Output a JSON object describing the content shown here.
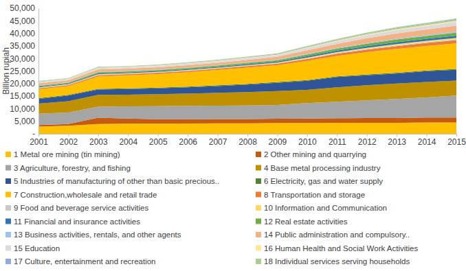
{
  "chart_data": {
    "type": "area",
    "stacked": true,
    "grid": false,
    "legend": "bottom",
    "y_label": "Billion rupiah",
    "x": [
      2001,
      2002,
      2003,
      2004,
      2005,
      2006,
      2007,
      2008,
      2009,
      2010,
      2011,
      2012,
      2013,
      2014,
      2015
    ],
    "xlim": [
      2001,
      2015
    ],
    "xticks": [
      2001,
      2002,
      2003,
      2004,
      2005,
      2006,
      2007,
      2008,
      2009,
      2010,
      2011,
      2012,
      2013,
      2014,
      2015
    ],
    "ylim": [
      0,
      50000
    ],
    "yticks": [
      {
        "value": 0,
        "label": "-"
      },
      {
        "value": 5000,
        "label": "5,000"
      },
      {
        "value": 10000,
        "label": "10,000"
      },
      {
        "value": 15000,
        "label": "15,000"
      },
      {
        "value": 20000,
        "label": "20,000"
      },
      {
        "value": 25000,
        "label": "25,000"
      },
      {
        "value": 30000,
        "label": "30,000"
      },
      {
        "value": 35000,
        "label": "35,000"
      },
      {
        "value": 40000,
        "label": "40,000"
      },
      {
        "value": 45000,
        "label": "45,000"
      },
      {
        "value": 50000,
        "label": "50,000"
      }
    ],
    "series": [
      {
        "name": "1 Metal ore mining (tin mining)",
        "color": "#FFC000",
        "values": [
          2900,
          3200,
          3900,
          4000,
          4000,
          4100,
          4200,
          4200,
          4300,
          4300,
          4400,
          4400,
          4400,
          4500,
          4500
        ]
      },
      {
        "name": "2 Other mining and quarrying",
        "color": "#C55A11",
        "values": [
          600,
          700,
          2500,
          2100,
          1800,
          1700,
          1700,
          1700,
          1700,
          1800,
          1800,
          1900,
          1900,
          2000,
          2000
        ]
      },
      {
        "name": "3 Agriculture, forestry, and fishing",
        "color": "#A5A5A5",
        "values": [
          4500,
          4600,
          4400,
          4800,
          5200,
          5300,
          5300,
          5400,
          5500,
          6100,
          6600,
          7000,
          7600,
          8000,
          8700
        ]
      },
      {
        "name": "4 Base metal processing industry",
        "color": "#BF9000",
        "values": [
          4000,
          4500,
          4700,
          4700,
          4800,
          4900,
          5100,
          5300,
          5500,
          5300,
          5700,
          6000,
          6100,
          6100,
          6000
        ]
      },
      {
        "name": "5 Industries of manufacturing of other than basic precious..",
        "color": "#2F5597",
        "values": [
          1900,
          2200,
          2100,
          2200,
          2300,
          2500,
          2700,
          3000,
          3300,
          3600,
          4100,
          4000,
          4000,
          4300,
          4300
        ]
      },
      {
        "name": "6 Electricity, gas and water supply",
        "color": "#548235",
        "values": [
          300,
          300,
          300,
          300,
          300,
          300,
          300,
          300,
          300,
          300,
          300,
          300,
          300,
          300,
          300
        ]
      },
      {
        "name": "7 Construction,wholesale and retail trade",
        "color": "#FFC000",
        "values": [
          3500,
          3500,
          4900,
          5200,
          5400,
          5700,
          6100,
          6500,
          6700,
          7600,
          8100,
          8900,
          9500,
          9800,
          10200
        ]
      },
      {
        "name": "8 Transportation and storage",
        "color": "#ED7D31",
        "values": [
          430,
          420,
          510,
          480,
          490,
          520,
          530,
          560,
          610,
          780,
          880,
          1010,
          1130,
          1200,
          1300
        ]
      },
      {
        "name": "9 Food and beverage service activities",
        "color": "#C9C9C9",
        "values": [
          130,
          130,
          160,
          150,
          150,
          160,
          160,
          170,
          190,
          240,
          270,
          310,
          350,
          370,
          400
        ]
      },
      {
        "name": "10 Information and Communication",
        "color": "#FFD966",
        "values": [
          170,
          160,
          200,
          190,
          190,
          200,
          210,
          220,
          240,
          300,
          340,
          390,
          440,
          460,
          500
        ]
      },
      {
        "name": "11 Financial and insurance activities",
        "color": "#2E75B6",
        "values": [
          300,
          290,
          350,
          330,
          340,
          360,
          370,
          390,
          420,
          540,
          610,
          700,
          780,
          830,
          900
        ]
      },
      {
        "name": "12 Real estate activities",
        "color": "#70AD47",
        "values": [
          400,
          380,
          470,
          440,
          460,
          480,
          490,
          520,
          560,
          720,
          820,
          940,
          1040,
          1100,
          1200
        ]
      },
      {
        "name": "13 Business activities, rentals, and other agents",
        "color": "#9DC3E6",
        "values": [
          130,
          130,
          160,
          150,
          150,
          160,
          160,
          170,
          190,
          240,
          270,
          310,
          350,
          370,
          400
        ]
      },
      {
        "name": "14 Public administration and compulsory..",
        "color": "#F4B183",
        "values": [
          790,
          770,
          940,
          890,
          910,
          960,
          980,
          1030,
          1130,
          1440,
          1630,
          1870,
          2090,
          2210,
          2400
        ]
      },
      {
        "name": "15 Education",
        "color": "#DBDBDB",
        "values": [
          500,
          480,
          590,
          560,
          570,
          600,
          620,
          650,
          710,
          900,
          1020,
          1170,
          1310,
          1380,
          1500
        ]
      },
      {
        "name": "16 Human Health and Social Work Activities",
        "color": "#FFE699",
        "values": [
          170,
          160,
          200,
          190,
          190,
          200,
          210,
          220,
          240,
          300,
          340,
          390,
          440,
          460,
          500
        ]
      },
      {
        "name": "17 Culture, entertainment and recreation",
        "color": "#8FAADC",
        "values": [
          100,
          100,
          120,
          110,
          110,
          120,
          120,
          130,
          140,
          180,
          200,
          230,
          260,
          280,
          300
        ]
      },
      {
        "name": "18 Individual services serving households",
        "color": "#A9D18E",
        "values": [
          200,
          190,
          230,
          220,
          230,
          240,
          250,
          260,
          280,
          360,
          410,
          470,
          520,
          550,
          600
        ]
      }
    ]
  }
}
